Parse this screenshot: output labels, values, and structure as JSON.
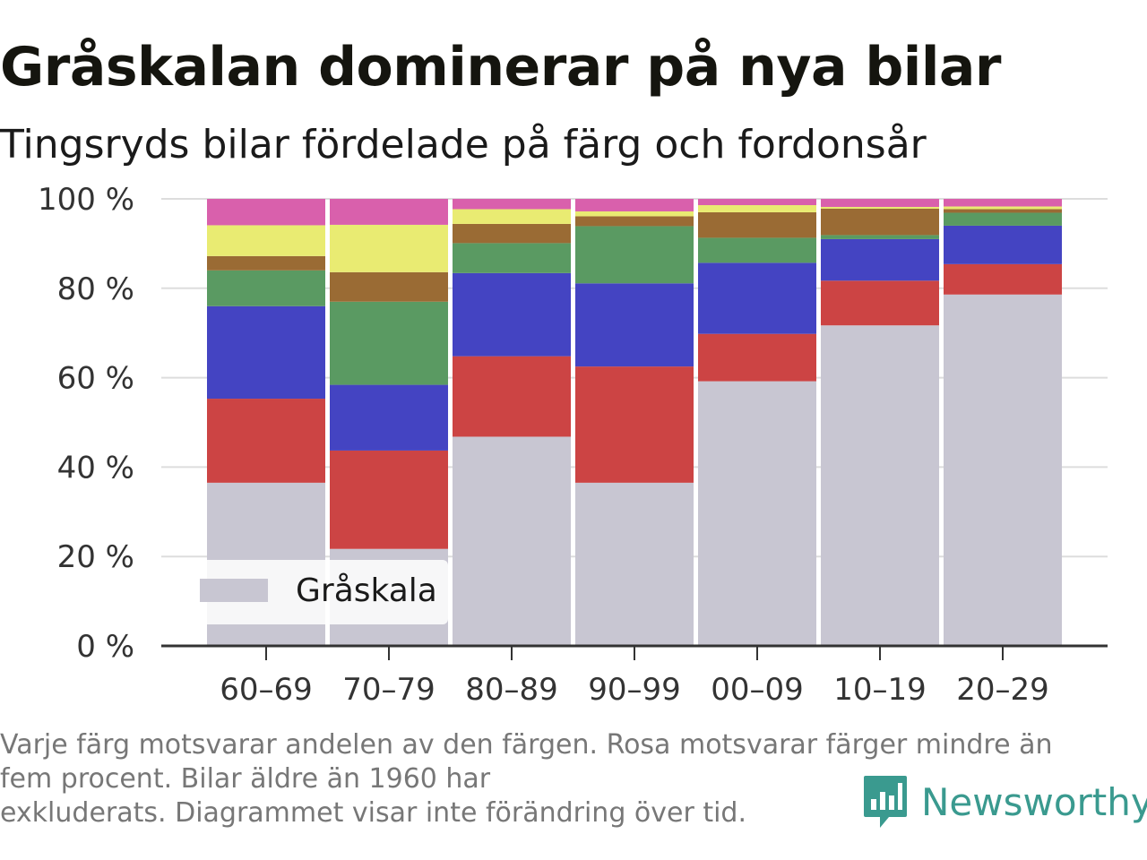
{
  "title": "Gråskalan dominerar på nya bilar",
  "subtitle": "Tingsryds bilar fördelade på färg och fordonsår",
  "footnote": {
    "line1": "Varje färg motsvarar andelen av den färgen. Rosa motsvarar färger mindre än",
    "line2": "fem procent. Bilar äldre än 1960 har",
    "line3": "exkluderats. Diagrammet visar inte förändring över tid."
  },
  "brand": {
    "name": "Newsworthy",
    "icon": "newsworthy-logo-icon",
    "color": "#3a9a8f"
  },
  "chart_data": {
    "type": "bar",
    "stacked": true,
    "categories": [
      "60–69",
      "70–79",
      "80–89",
      "90–99",
      "00–09",
      "10–19",
      "20–29"
    ],
    "y_tick_labels": [
      "0 %",
      "20 %",
      "40 %",
      "60 %",
      "80 %",
      "100 %"
    ],
    "ylim": [
      0,
      100
    ],
    "y_ticks": [
      0,
      20,
      40,
      60,
      80,
      100
    ],
    "grid": true,
    "legend": {
      "position": "bottom-left",
      "entries": [
        "Gråskala"
      ]
    },
    "series": [
      {
        "name": "Gråskala",
        "color": "#c8c6d2",
        "values": [
          36.5,
          21.7,
          46.8,
          36.5,
          59.2,
          71.7,
          78.6
        ]
      },
      {
        "color": "#cc4444",
        "values": [
          18.8,
          22.0,
          18.0,
          26.0,
          10.6,
          10.0,
          6.8
        ]
      },
      {
        "color": "#4444c2",
        "values": [
          20.7,
          14.7,
          18.6,
          18.6,
          15.9,
          9.3,
          8.6
        ]
      },
      {
        "color": "#5a9a62",
        "values": [
          8.0,
          18.6,
          6.7,
          12.8,
          5.6,
          0.9,
          2.9
        ]
      },
      {
        "color": "#9a6b34",
        "values": [
          3.2,
          6.6,
          4.3,
          2.2,
          5.7,
          5.9,
          0.8
        ]
      },
      {
        "color": "#e9eb72",
        "values": [
          6.9,
          10.6,
          3.3,
          1.1,
          1.6,
          0.4,
          0.6
        ]
      },
      {
        "color": "#d960ac",
        "values": [
          5.9,
          5.8,
          2.3,
          2.8,
          1.4,
          1.8,
          1.7
        ]
      }
    ]
  }
}
